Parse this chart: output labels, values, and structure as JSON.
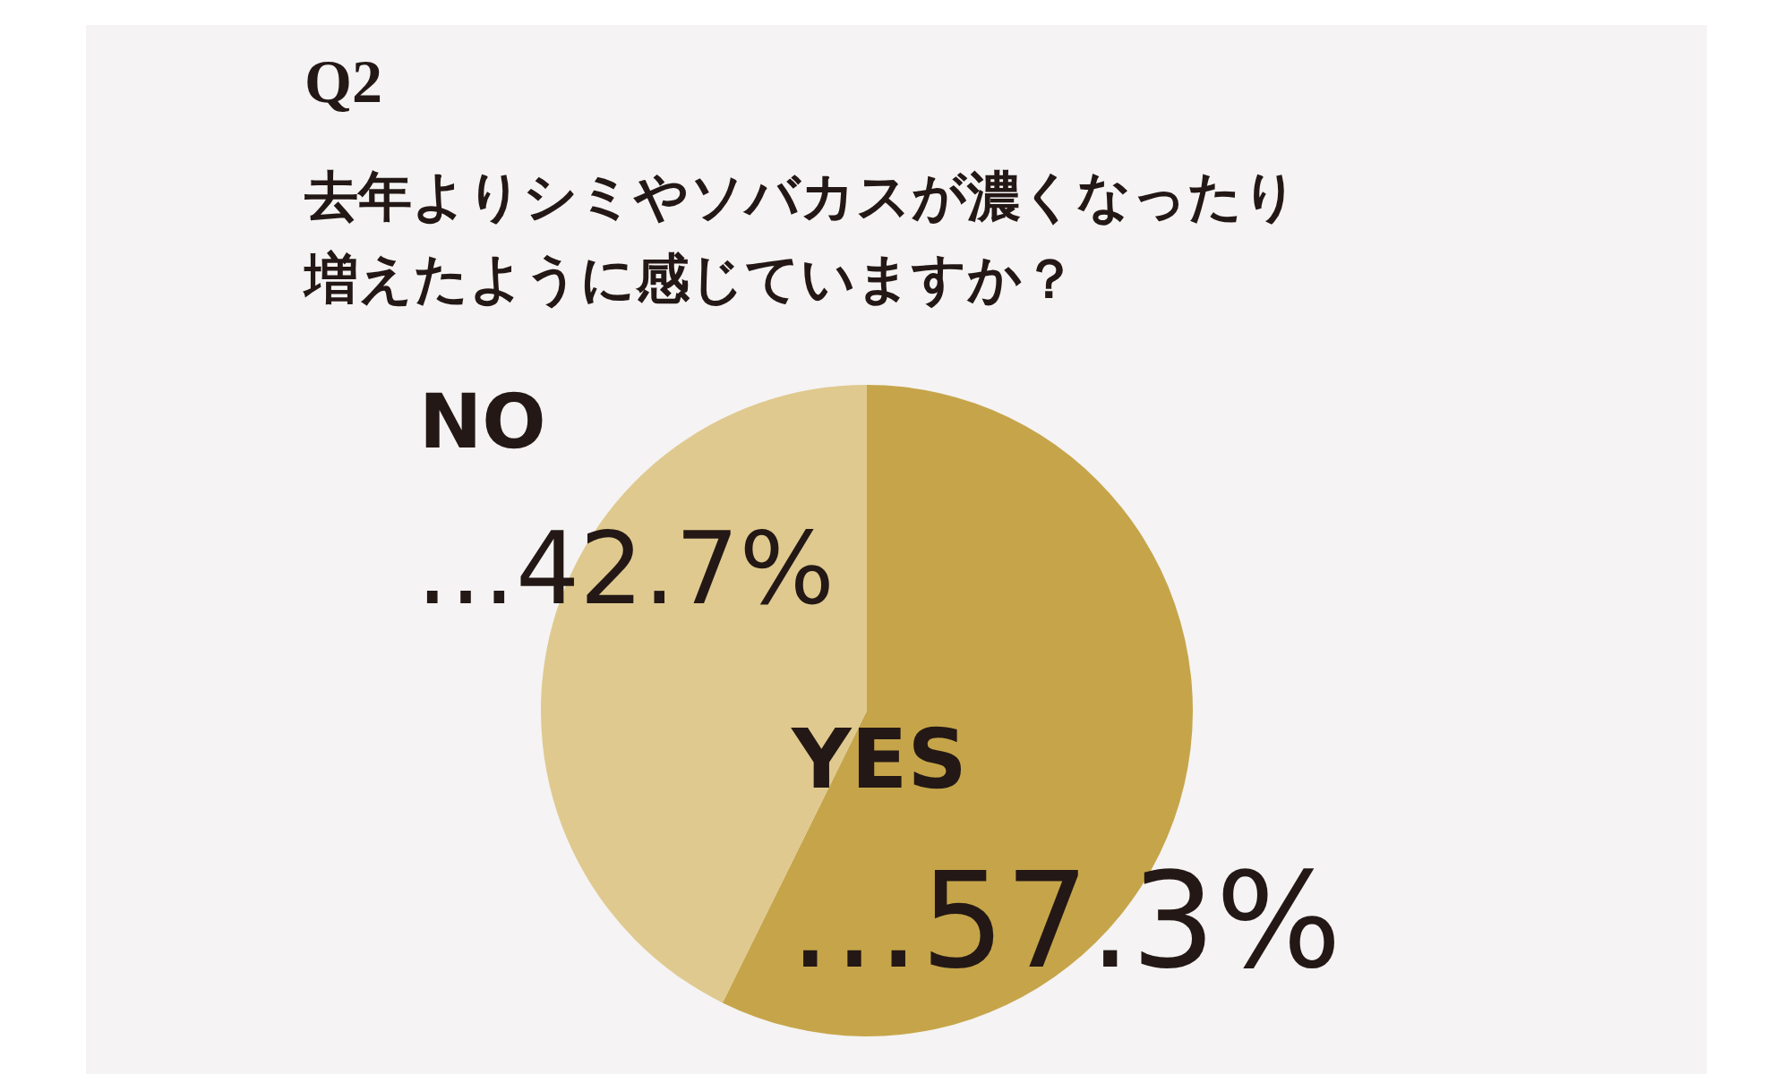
{
  "chart_data": {
    "type": "pie",
    "title": "Q2",
    "subtitle": "去年よりシミやソバカスが濃くなったり増えたように感じていますか？",
    "categories": [
      "YES",
      "NO"
    ],
    "values": [
      57.3,
      42.7
    ],
    "colors": [
      "#c6a54a",
      "#dfc98f"
    ],
    "value_labels": [
      "…57.3%",
      "…42.7%"
    ],
    "legend": false
  }
}
